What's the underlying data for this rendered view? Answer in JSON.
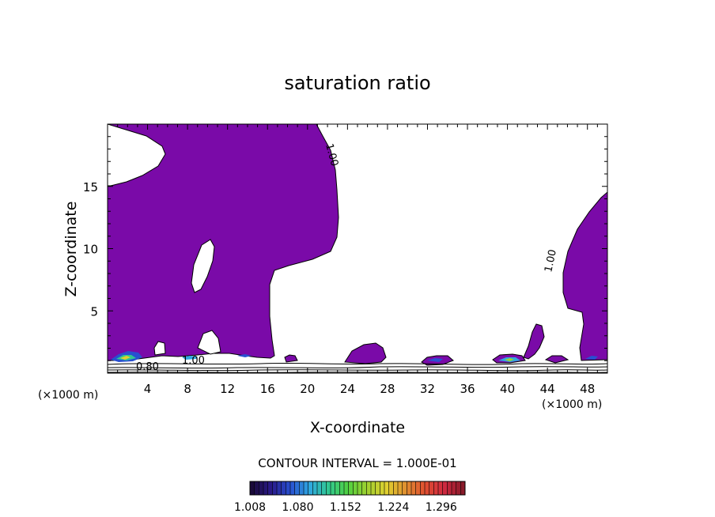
{
  "chart_data": {
    "type": "contour",
    "title": "saturation ratio",
    "xlabel": "X-coordinate",
    "ylabel": "Z-coordinate",
    "x_unit_left": "(×1000 m)",
    "x_unit_right": "(×1000 m)",
    "xlim": [
      0,
      50
    ],
    "ylim": [
      0,
      20
    ],
    "xticks": [
      4,
      8,
      12,
      16,
      20,
      24,
      28,
      32,
      36,
      40,
      44,
      48
    ],
    "yticks": [
      5,
      10,
      15
    ],
    "contour_interval_text": "CONTOUR INTERVAL = 1.000E-01",
    "contour_labels": [
      {
        "text": "1.00",
        "x": 21.9,
        "z": 17.3
      },
      {
        "text": "1.00",
        "x": 44.6,
        "z": 9.0
      },
      {
        "text": "0.80",
        "x": 4.3,
        "z": 0.5
      },
      {
        "text": "1.00",
        "x": 8.4,
        "z": 0.9
      }
    ],
    "colorbar": {
      "ticks": [
        "1.008",
        "1.080",
        "1.152",
        "1.224",
        "1.296"
      ],
      "min": 1.008,
      "max": 1.332,
      "colors": [
        "#1a0a3a",
        "#2a1a8a",
        "#2850d0",
        "#30a8e0",
        "#30c890",
        "#50d040",
        "#a0d030",
        "#e0d030",
        "#e09030",
        "#e05030",
        "#d02a40",
        "#8a1a2a"
      ]
    },
    "fill_color": "#7a0aa8",
    "saturated_regions": [
      {
        "name": "upper-left-mass",
        "value_range": "> 1.00"
      },
      {
        "name": "right-mass",
        "value_range": "> 1.00"
      }
    ]
  }
}
